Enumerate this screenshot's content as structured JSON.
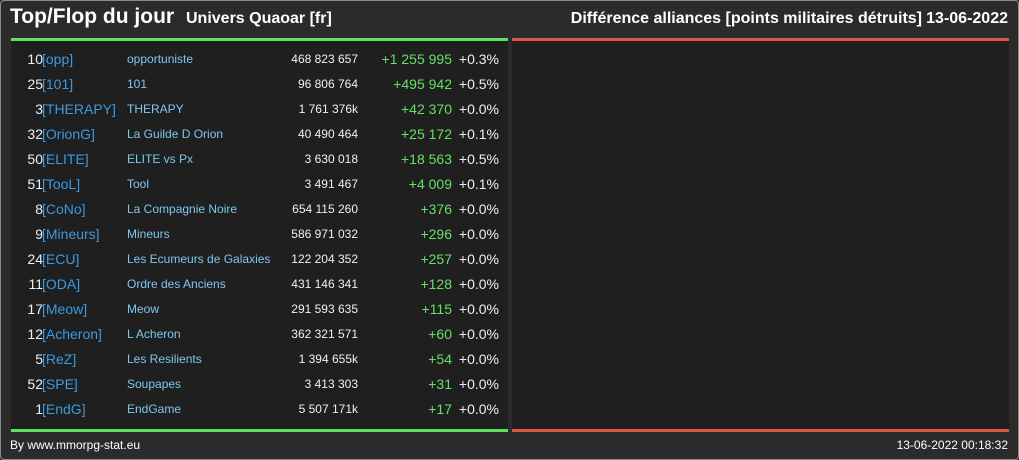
{
  "header": {
    "title": "Top/Flop du jour",
    "universe": "Univers Quaoar [fr]",
    "ranking": "Différence alliances [points militaires détruits]",
    "date": "13-06-2022"
  },
  "colors": {
    "background": "#2b2b2b",
    "panel": "#1f1f1f",
    "top_accent": "#5ee15e",
    "flop_accent": "#e0524a",
    "tag": "#3b9ae1",
    "name": "#7ec8ee",
    "gain": "#66e066"
  },
  "top_rows": [
    {
      "rank": "10",
      "tag": "[opp]",
      "name": "opportuniste",
      "points": "468 823 657",
      "diff": "+1 255 995",
      "pct": "+0.3%"
    },
    {
      "rank": "25",
      "tag": "[101]",
      "name": "101",
      "points": "96 806 764",
      "diff": "+495 942",
      "pct": "+0.5%"
    },
    {
      "rank": "3",
      "tag": "[THERAPY]",
      "name": "THERAPY",
      "points": "1 761 376k",
      "diff": "+42 370",
      "pct": "+0.0%"
    },
    {
      "rank": "32",
      "tag": "[OrionG]",
      "name": "La Guilde D Orion",
      "points": "40 490 464",
      "diff": "+25 172",
      "pct": "+0.1%"
    },
    {
      "rank": "50",
      "tag": "[ELITE]",
      "name": "ELITE vs Px",
      "points": "3 630 018",
      "diff": "+18 563",
      "pct": "+0.5%"
    },
    {
      "rank": "51",
      "tag": "[TooL]",
      "name": "Tool",
      "points": "3 491 467",
      "diff": "+4 009",
      "pct": "+0.1%"
    },
    {
      "rank": "8",
      "tag": "[CoNo]",
      "name": "La Compagnie Noire",
      "points": "654 115 260",
      "diff": "+376",
      "pct": "+0.0%"
    },
    {
      "rank": "9",
      "tag": "[Mineurs]",
      "name": "Mineurs",
      "points": "586 971 032",
      "diff": "+296",
      "pct": "+0.0%"
    },
    {
      "rank": "24",
      "tag": "[ECU]",
      "name": "Les Ecumeurs de Galaxies",
      "points": "122 204 352",
      "diff": "+257",
      "pct": "+0.0%"
    },
    {
      "rank": "11",
      "tag": "[ODA]",
      "name": "Ordre des Anciens",
      "points": "431 146 341",
      "diff": "+128",
      "pct": "+0.0%"
    },
    {
      "rank": "17",
      "tag": "[Meow]",
      "name": "Meow",
      "points": "291 593 635",
      "diff": "+115",
      "pct": "+0.0%"
    },
    {
      "rank": "12",
      "tag": "[Acheron]",
      "name": "L Acheron",
      "points": "362 321 571",
      "diff": "+60",
      "pct": "+0.0%"
    },
    {
      "rank": "5",
      "tag": "[ReZ]",
      "name": "Les Resilients",
      "points": "1 394 655k",
      "diff": "+54",
      "pct": "+0.0%"
    },
    {
      "rank": "52",
      "tag": "[SPE]",
      "name": "Soupapes",
      "points": "3 413 303",
      "diff": "+31",
      "pct": "+0.0%"
    },
    {
      "rank": "1",
      "tag": "[EndG]",
      "name": "EndGame",
      "points": "5 507 171k",
      "diff": "+17",
      "pct": "+0.0%"
    }
  ],
  "flop_rows": [],
  "footer": {
    "credit": "By www.mmorpg-stat.eu",
    "timestamp": "13-06-2022 00:18:32"
  }
}
